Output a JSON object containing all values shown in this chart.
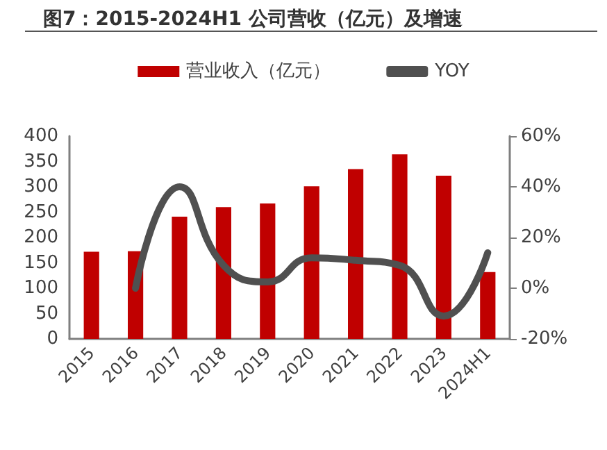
{
  "chart_data": {
    "type": "bar",
    "title": "图7：2015-2024H1 公司营收（亿元）及增速",
    "categories": [
      "2015",
      "2016",
      "2017",
      "2018",
      "2019",
      "2020",
      "2021",
      "2022",
      "2023",
      "2024H1"
    ],
    "series": [
      {
        "name": "营业收入（亿元）",
        "color": "#c00000",
        "values": [
          172,
          173,
          241,
          260,
          267,
          301,
          335,
          364,
          322,
          132
        ]
      },
      {
        "name": "YOY",
        "type": "line",
        "axis": "y2",
        "color": "#505050",
        "values": [
          null,
          0,
          40,
          9,
          2.5,
          12,
          11,
          9,
          -11,
          14
        ]
      }
    ],
    "ylim": [
      0,
      400
    ],
    "yticks": [
      0,
      50,
      100,
      150,
      200,
      250,
      300,
      350,
      400
    ],
    "y2lim": [
      -20,
      60
    ],
    "y2ticks": [
      {
        "value": -20,
        "label": "-20%"
      },
      {
        "value": 0,
        "label": "0%"
      },
      {
        "value": 20,
        "label": "20%"
      },
      {
        "value": 40,
        "label": "40%"
      },
      {
        "value": 60,
        "label": "60%"
      }
    ],
    "legend": "top",
    "grid": false,
    "marker": "none",
    "line_style": "solid"
  }
}
